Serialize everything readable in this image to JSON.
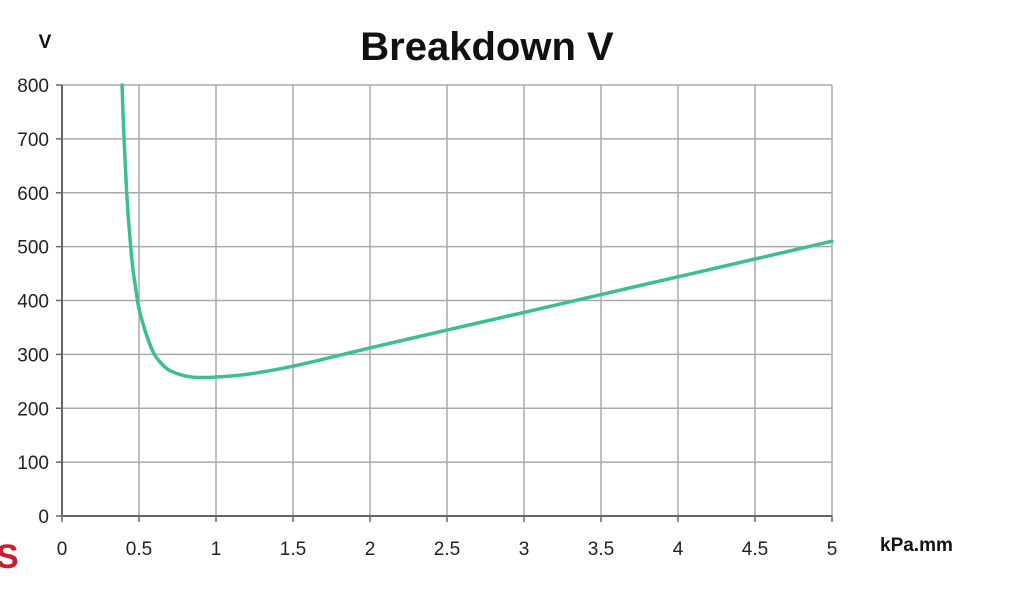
{
  "chart_data": {
    "type": "line",
    "title": "Breakdown V",
    "ylabel": "V",
    "xlabel": "kPa.mm",
    "xlim": [
      0,
      5
    ],
    "ylim": [
      0,
      800
    ],
    "x_ticks": [
      "0",
      "0.5",
      "1",
      "1.5",
      "2",
      "2.5",
      "3",
      "3.5",
      "4",
      "4.5",
      "5"
    ],
    "y_ticks": [
      "0",
      "100",
      "200",
      "300",
      "400",
      "500",
      "600",
      "700",
      "800"
    ],
    "grid": true,
    "series": [
      {
        "color": "#3cbf8f",
        "x": [
          0.39,
          0.4,
          0.42,
          0.44,
          0.46,
          0.48,
          0.5,
          0.55,
          0.6,
          0.65,
          0.7,
          0.8,
          0.9,
          1.0,
          1.2,
          1.5,
          2.0,
          2.5,
          3.0,
          3.5,
          4.0,
          4.5,
          5.0
        ],
        "y": [
          800,
          720,
          600,
          520,
          460,
          420,
          385,
          335,
          300,
          282,
          270,
          260,
          257,
          258,
          263,
          278,
          312,
          345,
          378,
          411,
          444,
          477,
          510
        ]
      }
    ]
  },
  "logo": {
    "text": "S",
    "color": "#c8202a"
  },
  "colors": {
    "grid": "#aaaaaa",
    "axis": "#666666",
    "background": "#ffffff"
  }
}
